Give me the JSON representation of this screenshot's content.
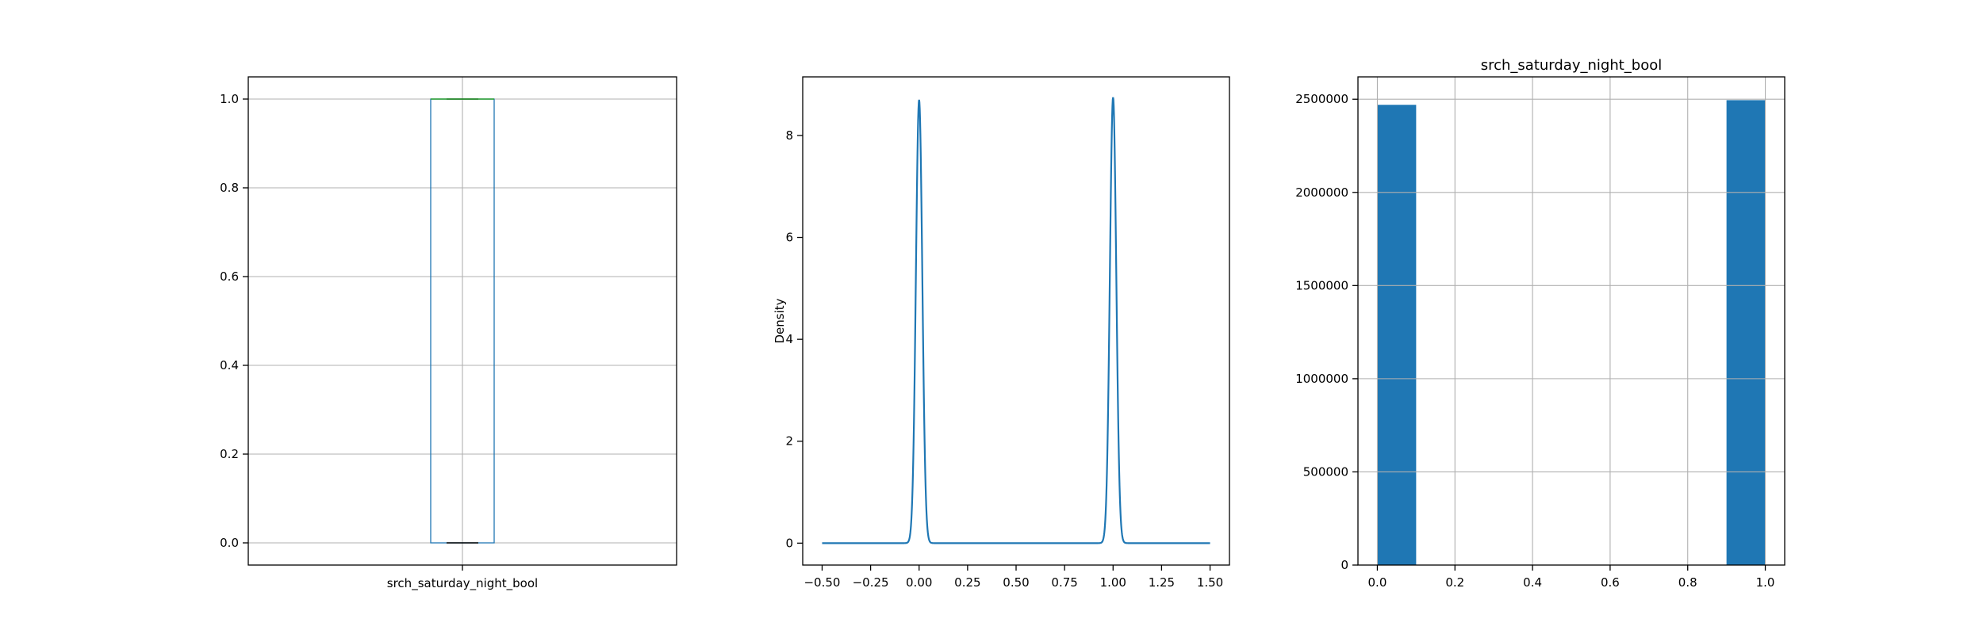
{
  "chart_data": [
    {
      "type": "box",
      "title": "",
      "xlabel": "",
      "ylabel": "",
      "categories": [
        "srch_saturday_night_bool"
      ],
      "box": {
        "min": 0.0,
        "q1": 0.0,
        "median": 1.0,
        "q3": 1.0,
        "max": 1.0
      },
      "ylim": [
        -0.05,
        1.05
      ],
      "yticks": [
        0.0,
        0.2,
        0.4,
        0.6,
        0.8,
        1.0
      ],
      "ytick_labels": [
        "0.0",
        "0.2",
        "0.4",
        "0.6",
        "0.8",
        "1.0"
      ],
      "grid": true,
      "colors": {
        "box": "#1f77b4",
        "median": "#2ca02c",
        "whisker": "#000000"
      }
    },
    {
      "type": "line",
      "title": "",
      "xlabel": "",
      "ylabel": "Density",
      "peaks": [
        {
          "x": 0.0,
          "height": 8.7
        },
        {
          "x": 1.0,
          "height": 8.75
        }
      ],
      "x_range": [
        -0.5,
        1.5
      ],
      "xlim": [
        -0.6,
        1.6
      ],
      "ylim": [
        -0.43,
        9.15
      ],
      "xticks": [
        -0.5,
        -0.25,
        0.0,
        0.25,
        0.5,
        0.75,
        1.0,
        1.25,
        1.5
      ],
      "xtick_labels": [
        "−0.50",
        "−0.25",
        "0.00",
        "0.25",
        "0.50",
        "0.75",
        "1.00",
        "1.25",
        "1.50"
      ],
      "yticks": [
        0,
        2,
        4,
        6,
        8
      ],
      "ytick_labels": [
        "0",
        "2",
        "4",
        "6",
        "8"
      ],
      "grid": false,
      "colors": {
        "line": "#1f77b4"
      }
    },
    {
      "type": "bar",
      "title": "srch_saturday_night_bool",
      "xlabel": "",
      "ylabel": "",
      "bins": [
        {
          "x0": 0.0,
          "x1": 0.1,
          "count": 2470000
        },
        {
          "x0": 0.1,
          "x1": 0.2,
          "count": 0
        },
        {
          "x0": 0.2,
          "x1": 0.3,
          "count": 0
        },
        {
          "x0": 0.3,
          "x1": 0.4,
          "count": 0
        },
        {
          "x0": 0.4,
          "x1": 0.5,
          "count": 0
        },
        {
          "x0": 0.5,
          "x1": 0.6,
          "count": 0
        },
        {
          "x0": 0.6,
          "x1": 0.7,
          "count": 0
        },
        {
          "x0": 0.7,
          "x1": 0.8,
          "count": 0
        },
        {
          "x0": 0.8,
          "x1": 0.9,
          "count": 0
        },
        {
          "x0": 0.9,
          "x1": 1.0,
          "count": 2495000
        }
      ],
      "xlim": [
        -0.05,
        1.05
      ],
      "ylim": [
        0,
        2620000
      ],
      "xticks": [
        0.0,
        0.2,
        0.4,
        0.6,
        0.8,
        1.0
      ],
      "xtick_labels": [
        "0.0",
        "0.2",
        "0.4",
        "0.6",
        "0.8",
        "1.0"
      ],
      "yticks": [
        0,
        500000,
        1000000,
        1500000,
        2000000,
        2500000
      ],
      "ytick_labels": [
        "0",
        "500000",
        "1000000",
        "1500000",
        "2000000",
        "2500000"
      ],
      "grid": true,
      "colors": {
        "bar": "#1f77b4"
      }
    }
  ]
}
